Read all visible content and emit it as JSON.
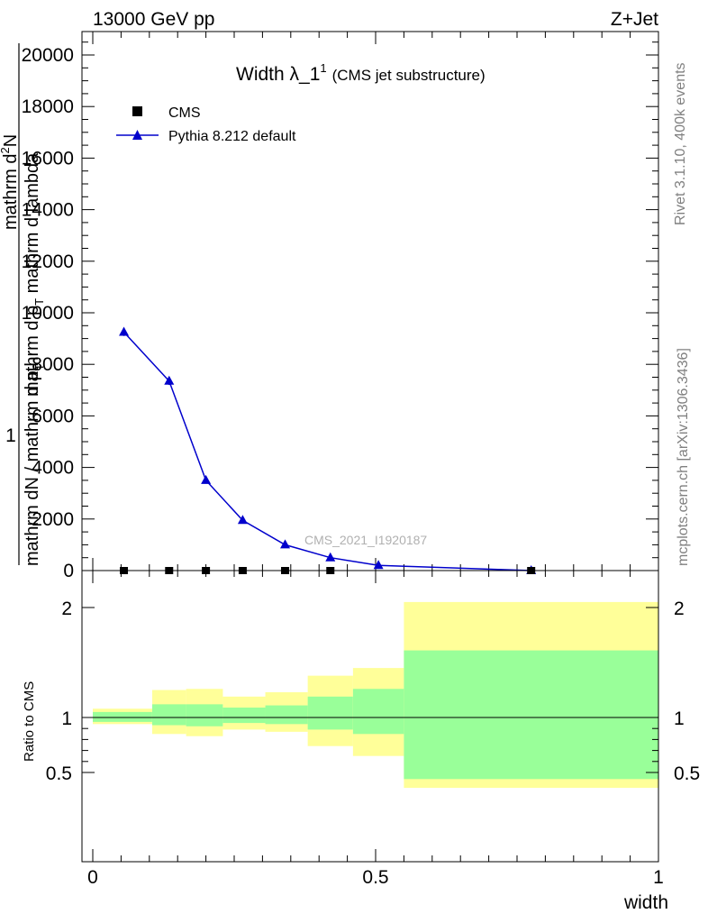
{
  "header": {
    "energy_label": "13000 GeV pp",
    "process_label": "Z+Jet"
  },
  "side_labels": {
    "rivet": "Rivet 3.1.10,  400k events",
    "mcplots": "mcplots.cern.ch [arXiv:1306.3436]"
  },
  "chart_data": [
    {
      "type": "line",
      "title_main": "Width λ_1",
      "title_sup": "1",
      "title_sub": "(CMS jet substructure)",
      "analysis_tag": "CMS_2021_I1920187",
      "ylabel_num": "1",
      "ylabel_den": "mathrm dN / mathrm d p",
      "ylabel_den_sub": "T",
      "ylabel_right_num": "mathrm d",
      "ylabel_right_num_sup": "2",
      "ylabel_right_num_tail": "N",
      "ylabel_right_den": "mathrm d p",
      "ylabel_right_den_sub": "T",
      "ylabel_right_den_tail": " mathrm d lambda",
      "ylim": [
        0,
        21000
      ],
      "yticks": [
        0,
        2000,
        4000,
        6000,
        8000,
        10000,
        12000,
        14000,
        16000,
        18000,
        20000
      ],
      "xlim": [
        0,
        1
      ],
      "legend": {
        "placement": "top-left",
        "entries": [
          "CMS",
          "Pythia 8.212 default"
        ]
      },
      "series": [
        {
          "name": "CMS",
          "marker": "square",
          "color": "#000000",
          "x": [
            0.055,
            0.135,
            0.2,
            0.265,
            0.34,
            0.42,
            0.775
          ],
          "y": [
            0,
            0,
            0,
            0,
            0,
            0,
            0
          ]
        },
        {
          "name": "Pythia 8.212 default",
          "marker": "triangle",
          "color": "#0000cc",
          "x": [
            0.055,
            0.135,
            0.2,
            0.265,
            0.34,
            0.42,
            0.505,
            0.775
          ],
          "y": [
            9250,
            7350,
            3500,
            1950,
            1000,
            500,
            200,
            0
          ],
          "yerr": [
            150,
            150,
            0,
            0,
            0,
            0,
            0,
            0
          ]
        }
      ]
    },
    {
      "type": "area",
      "ylabel": "Ratio to CMS",
      "xlabel": "width",
      "xlim": [
        0,
        1
      ],
      "xticks": [
        "0",
        "0.5",
        "1"
      ],
      "ylim": [
        0.36,
        2.24
      ],
      "yticks": [
        "0.5",
        "1",
        "2"
      ],
      "reference_line": 1,
      "bands": [
        {
          "x0": 0.0,
          "x1": 0.105,
          "inner": [
            0.96,
            1.05
          ],
          "outer": [
            0.94,
            1.08
          ]
        },
        {
          "x0": 0.105,
          "x1": 0.165,
          "inner": [
            0.93,
            1.12
          ],
          "outer": [
            0.85,
            1.25
          ]
        },
        {
          "x0": 0.165,
          "x1": 0.23,
          "inner": [
            0.92,
            1.12
          ],
          "outer": [
            0.83,
            1.26
          ]
        },
        {
          "x0": 0.23,
          "x1": 0.305,
          "inner": [
            0.95,
            1.09
          ],
          "outer": [
            0.89,
            1.19
          ]
        },
        {
          "x0": 0.305,
          "x1": 0.38,
          "inner": [
            0.94,
            1.11
          ],
          "outer": [
            0.87,
            1.23
          ]
        },
        {
          "x0": 0.38,
          "x1": 0.46,
          "inner": [
            0.89,
            1.19
          ],
          "outer": [
            0.74,
            1.38
          ]
        },
        {
          "x0": 0.46,
          "x1": 0.55,
          "inner": [
            0.85,
            1.26
          ],
          "outer": [
            0.65,
            1.45
          ]
        },
        {
          "x0": 0.55,
          "x1": 1.0,
          "inner": [
            0.44,
            1.61
          ],
          "outer": [
            0.36,
            2.05
          ]
        }
      ],
      "colors": {
        "inner": "#99ff99",
        "outer": "#ffff99"
      }
    }
  ]
}
